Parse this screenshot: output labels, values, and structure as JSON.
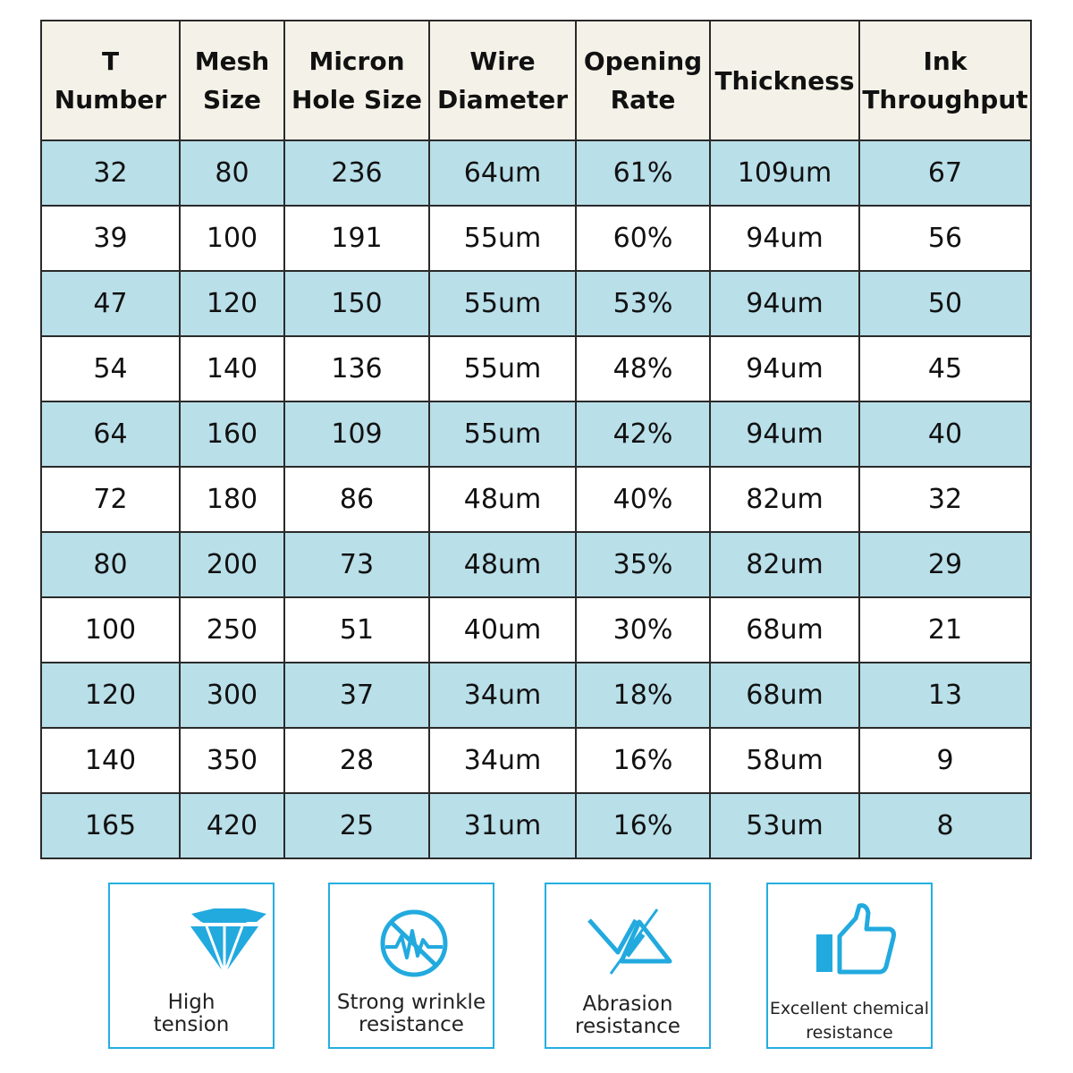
{
  "table": {
    "headers": [
      "T Number",
      "Mesh\nSize",
      "Micron\nHole Size",
      "Wire\nDiameter",
      "Opening\nRate",
      "Thickness",
      "Ink\nThroughput"
    ],
    "rows": [
      [
        "32",
        "80",
        "236",
        "64um",
        "61%",
        "109um",
        "67"
      ],
      [
        "39",
        "100",
        "191",
        "55um",
        "60%",
        "94um",
        "56"
      ],
      [
        "47",
        "120",
        "150",
        "55um",
        "53%",
        "94um",
        "50"
      ],
      [
        "54",
        "140",
        "136",
        "55um",
        "48%",
        "94um",
        "45"
      ],
      [
        "64",
        "160",
        "109",
        "55um",
        "42%",
        "94um",
        "40"
      ],
      [
        "72",
        "180",
        "86",
        "48um",
        "40%",
        "82um",
        "32"
      ],
      [
        "80",
        "200",
        "73",
        "48um",
        "35%",
        "82um",
        "29"
      ],
      [
        "100",
        "250",
        "51",
        "40um",
        "30%",
        "68um",
        "21"
      ],
      [
        "120",
        "300",
        "37",
        "34um",
        "18%",
        "68um",
        "13"
      ],
      [
        "140",
        "350",
        "28",
        "34um",
        "16%",
        "58um",
        "9"
      ],
      [
        "165",
        "420",
        "25",
        "31um",
        "16%",
        "53um",
        "8"
      ]
    ]
  },
  "features": [
    {
      "icon": "diamond-icon",
      "label": "High\ntension"
    },
    {
      "icon": "wrinkle-resistance-icon",
      "label": "Strong wrinkle\nresistance"
    },
    {
      "icon": "abrasion-icon",
      "label": "Abrasion\nresistance"
    },
    {
      "icon": "thumbs-up-icon",
      "label": "Excellent chemical\nresistance"
    }
  ],
  "colors": {
    "header_bg": "#f4f2e8",
    "shaded_row": "#b9dfe9",
    "accent": "#24aee0",
    "border": "#2a2a2a"
  }
}
